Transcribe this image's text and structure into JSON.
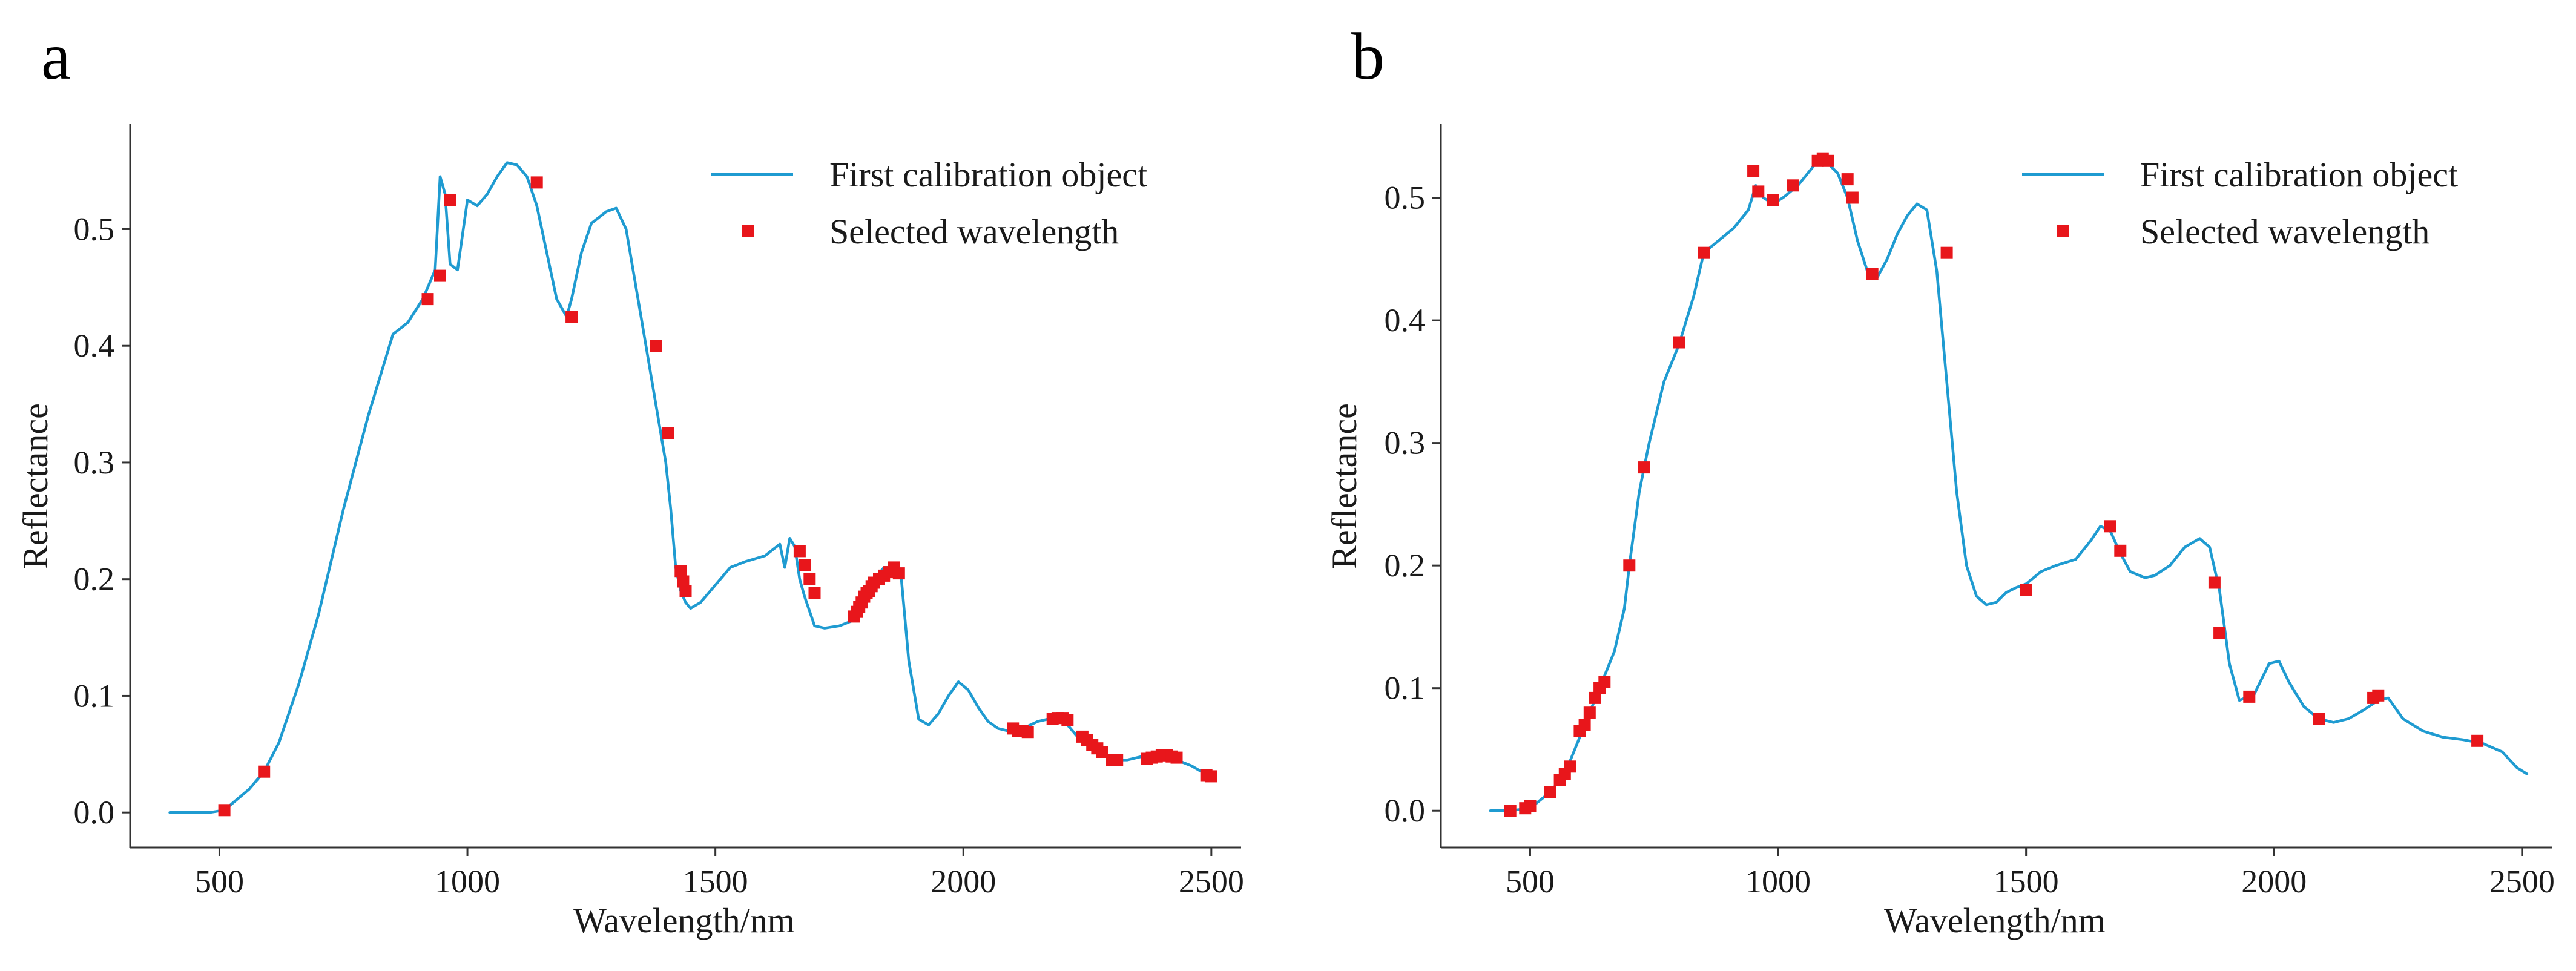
{
  "chart_data": [
    {
      "type": "line",
      "panel_label": "a",
      "xlabel": "Wavelength/nm",
      "ylabel": "Reflectance",
      "xlim": [
        320,
        2560
      ],
      "ylim": [
        -0.03,
        0.59
      ],
      "xticks": [
        500,
        1000,
        1500,
        2000,
        2500
      ],
      "xtick_labels": [
        "500",
        "1000",
        "1500",
        "2000",
        "2500"
      ],
      "yticks": [
        0.0,
        0.1,
        0.2,
        0.3,
        0.4,
        0.5
      ],
      "ytick_labels": [
        "0.0",
        "0.1",
        "0.2",
        "0.3",
        "0.4",
        "0.5"
      ],
      "legend": {
        "position": "top-right",
        "entries": [
          "First calibration object",
          "Selected wavelength"
        ]
      },
      "colors": {
        "line": "#1f9bd1",
        "marker": "#e8161b"
      },
      "series": [
        {
          "name": "First calibration object",
          "kind": "line",
          "x": [
            400,
            480,
            510,
            560,
            590,
            620,
            660,
            700,
            750,
            800,
            850,
            880,
            910,
            935,
            945,
            955,
            965,
            980,
            1000,
            1020,
            1040,
            1060,
            1080,
            1100,
            1120,
            1140,
            1160,
            1180,
            1200,
            1210,
            1230,
            1250,
            1280,
            1300,
            1320,
            1340,
            1360,
            1380,
            1400,
            1410,
            1420,
            1430,
            1440,
            1450,
            1470,
            1500,
            1530,
            1560,
            1600,
            1630,
            1640,
            1650,
            1660,
            1670,
            1680,
            1700,
            1720,
            1750,
            1780,
            1800,
            1820,
            1840,
            1860,
            1875,
            1890,
            1910,
            1930,
            1950,
            1970,
            1990,
            2010,
            2030,
            2050,
            2070,
            2090,
            2110,
            2130,
            2150,
            2170,
            2190,
            2210,
            2230,
            2250,
            2270,
            2290,
            2310,
            2330,
            2350,
            2380,
            2410,
            2430,
            2460,
            2480,
            2500
          ],
          "y": [
            0.0,
            0.0,
            0.002,
            0.02,
            0.035,
            0.06,
            0.11,
            0.17,
            0.26,
            0.34,
            0.41,
            0.42,
            0.44,
            0.465,
            0.545,
            0.53,
            0.47,
            0.465,
            0.525,
            0.52,
            0.53,
            0.545,
            0.557,
            0.555,
            0.545,
            0.52,
            0.48,
            0.44,
            0.425,
            0.44,
            0.48,
            0.505,
            0.515,
            0.518,
            0.5,
            0.45,
            0.4,
            0.35,
            0.3,
            0.26,
            0.21,
            0.19,
            0.18,
            0.175,
            0.18,
            0.195,
            0.21,
            0.215,
            0.22,
            0.23,
            0.21,
            0.235,
            0.228,
            0.2,
            0.185,
            0.16,
            0.158,
            0.16,
            0.165,
            0.19,
            0.2,
            0.21,
            0.21,
            0.2,
            0.13,
            0.08,
            0.075,
            0.085,
            0.1,
            0.112,
            0.105,
            0.09,
            0.078,
            0.072,
            0.07,
            0.07,
            0.074,
            0.078,
            0.08,
            0.08,
            0.075,
            0.065,
            0.058,
            0.052,
            0.048,
            0.045,
            0.045,
            0.047,
            0.05,
            0.05,
            0.045,
            0.04,
            0.035,
            0.03
          ]
        },
        {
          "name": "Selected wavelength",
          "kind": "markers",
          "x": [
            510,
            590,
            920,
            945,
            965,
            1140,
            1210,
            1380,
            1405,
            1430,
            1435,
            1440,
            1670,
            1680,
            1690,
            1700,
            1780,
            1785,
            1790,
            1795,
            1800,
            1805,
            1810,
            1815,
            1820,
            1830,
            1840,
            1850,
            1860,
            1870,
            2100,
            2110,
            2120,
            2130,
            2180,
            2190,
            2200,
            2210,
            2240,
            2250,
            2260,
            2270,
            2280,
            2300,
            2310,
            2370,
            2380,
            2390,
            2400,
            2410,
            2420,
            2430,
            2490,
            2500
          ],
          "y": [
            0.002,
            0.035,
            0.44,
            0.46,
            0.525,
            0.54,
            0.425,
            0.4,
            0.325,
            0.207,
            0.198,
            0.19,
            0.224,
            0.212,
            0.2,
            0.188,
            0.168,
            0.172,
            0.176,
            0.18,
            0.185,
            0.188,
            0.19,
            0.194,
            0.197,
            0.2,
            0.203,
            0.206,
            0.21,
            0.205,
            0.072,
            0.07,
            0.07,
            0.069,
            0.08,
            0.081,
            0.081,
            0.079,
            0.065,
            0.062,
            0.058,
            0.055,
            0.052,
            0.045,
            0.045,
            0.046,
            0.047,
            0.048,
            0.049,
            0.049,
            0.048,
            0.047,
            0.032,
            0.031
          ]
        }
      ]
    },
    {
      "type": "line",
      "panel_label": "b",
      "xlabel": "Wavelength/nm",
      "ylabel": "Reflectance",
      "xlim": [
        320,
        2560
      ],
      "ylim": [
        -0.03,
        0.56
      ],
      "xticks": [
        500,
        1000,
        1500,
        2000,
        2500
      ],
      "xtick_labels": [
        "500",
        "1000",
        "1500",
        "2000",
        "2500"
      ],
      "yticks": [
        0.0,
        0.1,
        0.2,
        0.3,
        0.4,
        0.5
      ],
      "ytick_labels": [
        "0.0",
        "0.1",
        "0.2",
        "0.3",
        "0.4",
        "0.5"
      ],
      "legend": {
        "position": "top-right",
        "entries": [
          "First calibration object",
          "Selected wavelength"
        ]
      },
      "colors": {
        "line": "#1f9bd1",
        "marker": "#e8161b"
      },
      "series": [
        {
          "name": "First calibration object",
          "kind": "line",
          "x": [
            420,
            460,
            500,
            540,
            570,
            600,
            630,
            650,
            670,
            690,
            700,
            720,
            740,
            770,
            800,
            830,
            850,
            880,
            910,
            940,
            955,
            970,
            990,
            1010,
            1040,
            1060,
            1080,
            1100,
            1120,
            1140,
            1160,
            1180,
            1200,
            1220,
            1240,
            1260,
            1280,
            1300,
            1320,
            1340,
            1360,
            1380,
            1400,
            1420,
            1440,
            1460,
            1480,
            1500,
            1530,
            1560,
            1600,
            1630,
            1650,
            1670,
            1690,
            1710,
            1740,
            1760,
            1790,
            1820,
            1850,
            1870,
            1890,
            1910,
            1930,
            1960,
            1990,
            2010,
            2030,
            2060,
            2090,
            2120,
            2150,
            2180,
            2210,
            2230,
            2260,
            2300,
            2340,
            2380,
            2420,
            2460,
            2490,
            2510
          ],
          "y": [
            0.0,
            0.0,
            0.002,
            0.015,
            0.03,
            0.06,
            0.09,
            0.11,
            0.13,
            0.165,
            0.2,
            0.26,
            0.3,
            0.35,
            0.38,
            0.42,
            0.455,
            0.465,
            0.475,
            0.49,
            0.51,
            0.5,
            0.495,
            0.5,
            0.51,
            0.52,
            0.53,
            0.528,
            0.52,
            0.5,
            0.465,
            0.44,
            0.435,
            0.45,
            0.47,
            0.485,
            0.495,
            0.49,
            0.44,
            0.35,
            0.26,
            0.2,
            0.175,
            0.168,
            0.17,
            0.178,
            0.182,
            0.185,
            0.195,
            0.2,
            0.205,
            0.22,
            0.232,
            0.228,
            0.21,
            0.195,
            0.19,
            0.192,
            0.2,
            0.215,
            0.222,
            0.215,
            0.18,
            0.12,
            0.09,
            0.095,
            0.12,
            0.122,
            0.105,
            0.085,
            0.075,
            0.072,
            0.075,
            0.082,
            0.09,
            0.092,
            0.075,
            0.065,
            0.06,
            0.058,
            0.055,
            0.048,
            0.035,
            0.03
          ]
        },
        {
          "name": "Selected wavelength",
          "kind": "markers",
          "x": [
            460,
            490,
            500,
            540,
            560,
            570,
            580,
            600,
            610,
            620,
            630,
            640,
            650,
            700,
            730,
            800,
            850,
            950,
            960,
            990,
            1030,
            1080,
            1090,
            1100,
            1140,
            1150,
            1190,
            1340,
            1500,
            1670,
            1690,
            1880,
            1890,
            1950,
            2090,
            2200,
            2210,
            2410
          ],
          "y": [
            0.0,
            0.002,
            0.004,
            0.015,
            0.025,
            0.03,
            0.036,
            0.065,
            0.07,
            0.08,
            0.092,
            0.1,
            0.105,
            0.2,
            0.28,
            0.382,
            0.455,
            0.522,
            0.505,
            0.498,
            0.51,
            0.53,
            0.532,
            0.53,
            0.515,
            0.5,
            0.438,
            0.455,
            0.18,
            0.232,
            0.212,
            0.186,
            0.145,
            0.093,
            0.075,
            0.092,
            0.094,
            0.057
          ]
        }
      ]
    }
  ]
}
